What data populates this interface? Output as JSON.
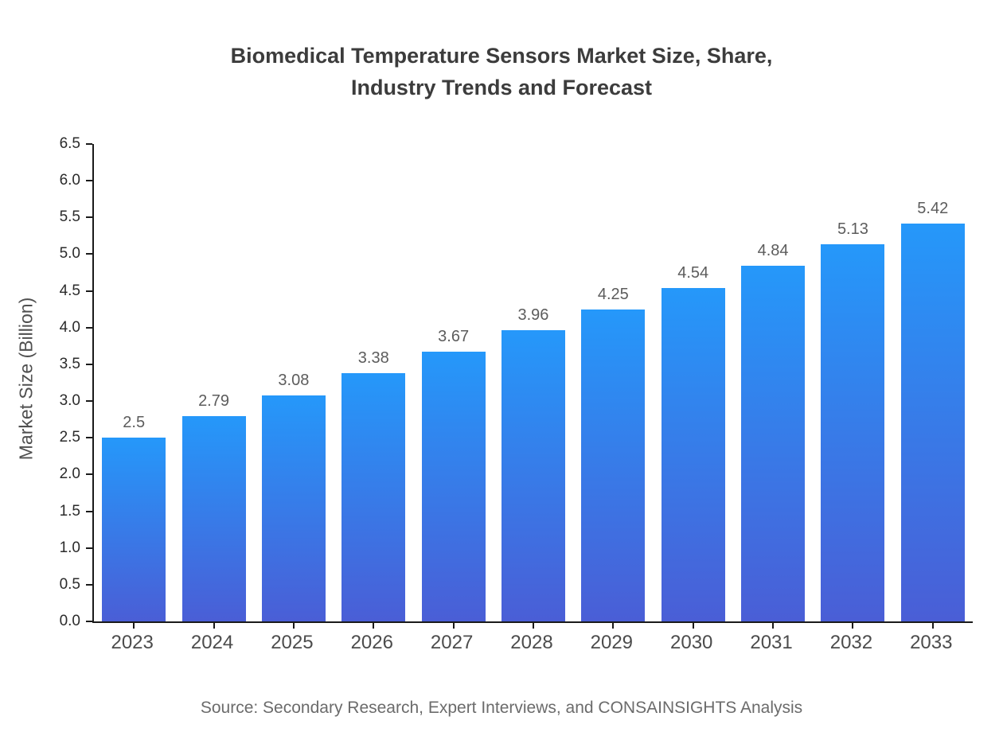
{
  "chart_data": {
    "type": "bar",
    "title_line1": "Biomedical Temperature Sensors Market Size, Share,",
    "title_line2": "Industry Trends and Forecast",
    "ylabel": "Market Size (Billion)",
    "xlabel": "",
    "categories": [
      "2023",
      "2024",
      "2025",
      "2026",
      "2027",
      "2028",
      "2029",
      "2030",
      "2031",
      "2032",
      "2033"
    ],
    "values": [
      2.5,
      2.79,
      3.08,
      3.38,
      3.67,
      3.96,
      4.25,
      4.54,
      4.84,
      5.13,
      5.42
    ],
    "ylim": [
      0,
      6.5
    ],
    "ytick_step": 0.5,
    "grid": false,
    "legend": "none",
    "bar_gradient_top": "#2598fa",
    "bar_gradient_bottom": "#4a5ed6",
    "axis_color": "#1a1a1a",
    "title_color": "#3c3c3c",
    "value_label_color": "#5c5c5c",
    "source": "Source: Secondary Research, Expert Interviews, and CONSAINSIGHTS Analysis"
  }
}
